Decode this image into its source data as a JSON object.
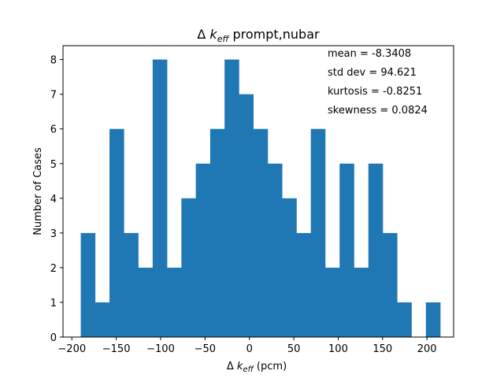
{
  "chart_data": {
    "type": "bar",
    "title": {
      "prefix": "Δ ",
      "symbol": "k",
      "subscript": "eff",
      "suffix": "  prompt,nubar"
    },
    "xlabel": {
      "prefix": "Δ ",
      "symbol": "k",
      "subscript": "eff",
      "suffix": " (pcm)"
    },
    "ylabel": "Number of Cases",
    "bin_edges": [
      -190.0,
      -173.8,
      -157.6,
      -141.4,
      -125.2,
      -109.0,
      -92.8,
      -76.6,
      -60.4,
      -44.2,
      -28.0,
      -11.8,
      4.4,
      20.6,
      36.8,
      53.0,
      69.2,
      85.4,
      101.6,
      117.8,
      134.0,
      150.2,
      166.4,
      182.6,
      198.8,
      215.0
    ],
    "counts": [
      3,
      1,
      6,
      3,
      2,
      8,
      2,
      4,
      5,
      6,
      8,
      7,
      6,
      5,
      4,
      3,
      6,
      2,
      5,
      2,
      5,
      3,
      1,
      0,
      1
    ],
    "xlim": [
      -210,
      230
    ],
    "ylim": [
      0,
      8.4
    ],
    "xticks": [
      -200,
      -150,
      -100,
      -50,
      0,
      50,
      100,
      150,
      200
    ],
    "yticks": [
      0,
      1,
      2,
      3,
      4,
      5,
      6,
      7,
      8
    ],
    "bar_color": "#1f77b4",
    "annotations": [
      "mean = -8.3408",
      "std dev = 94.621",
      "kurtosis = -0.8251",
      "skewness = 0.0824"
    ]
  }
}
